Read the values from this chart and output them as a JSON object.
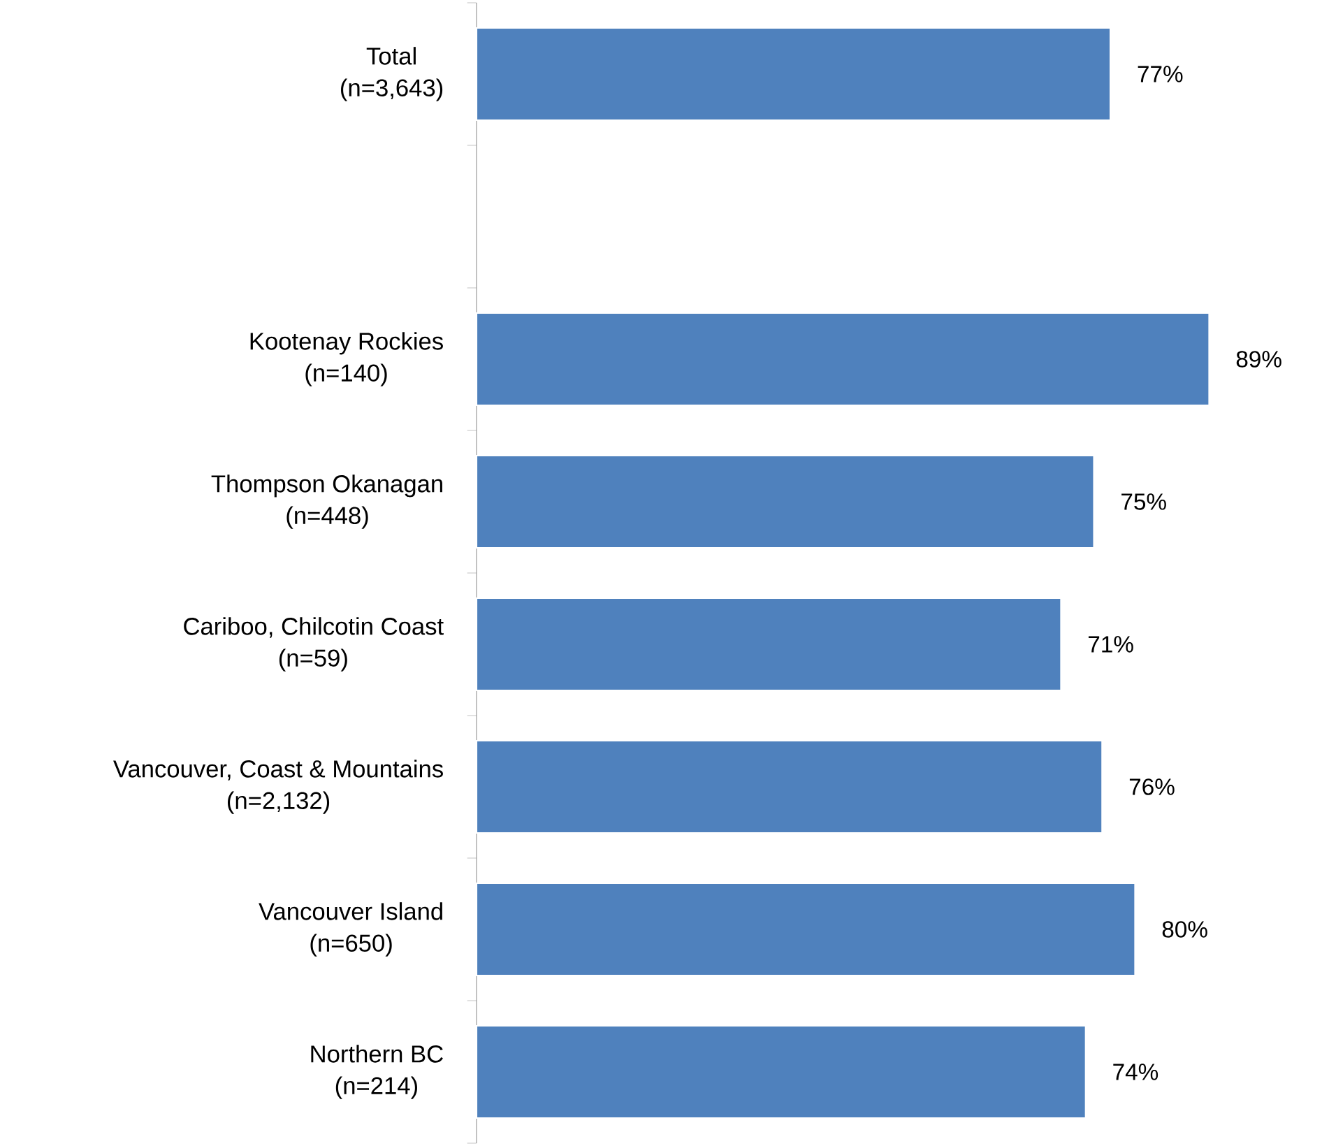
{
  "chart_data": {
    "type": "bar",
    "orientation": "horizontal",
    "categories": [
      "Total\n(n=3,643)",
      null,
      "Kootenay Rockies\n(n=140)",
      "Thompson Okanagan\n(n=448)",
      "Cariboo, Chilcotin Coast\n(n=59)",
      "Vancouver, Coast & Mountains\n(n=2,132)",
      "Vancouver Island\n(n=650)",
      "Northern BC\n(n=214)"
    ],
    "values": [
      77,
      null,
      89,
      75,
      71,
      76,
      80,
      74
    ],
    "value_labels": [
      "77%",
      null,
      "89%",
      "75%",
      "71%",
      "76%",
      "80%",
      "74%"
    ],
    "color": "#4f81bd",
    "tick_labels": "y"
  }
}
